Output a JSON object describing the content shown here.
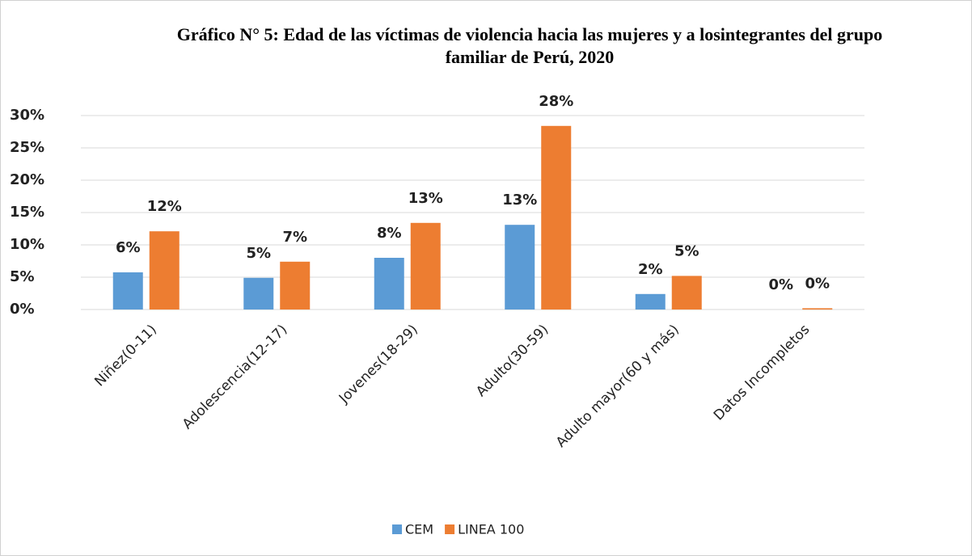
{
  "chart_data": {
    "type": "bar",
    "title": [
      "Gráfico N° 5: Edad de las víctimas de violencia hacia las mujeres y a losintegrantes del grupo",
      "familiar de Perú, 2020"
    ],
    "categories": [
      "Niñez(0-11)",
      "Adolescencia(12-17)",
      "Jovenes(18-29)",
      "Adulto(30-59)",
      "Adulto mayor(60 y más)",
      "Datos Incompletos"
    ],
    "series": [
      {
        "name": "CEM",
        "color": "#5b9bd5",
        "values": [
          5.75,
          4.9,
          8.0,
          13.1,
          2.4,
          0.0
        ],
        "value_labels": [
          "6%",
          "5%",
          "8%",
          "13%",
          "2%",
          "0%"
        ]
      },
      {
        "name": "LINEA 100",
        "color": "#ed7d31",
        "values": [
          12.1,
          7.4,
          13.4,
          28.4,
          5.2,
          0.2
        ],
        "value_labels": [
          "12%",
          "7%",
          "13%",
          "28%",
          "5%",
          "0%"
        ]
      }
    ],
    "ylim": [
      0,
      30
    ],
    "yticks": [
      {
        "value": 0,
        "label": "0%"
      },
      {
        "value": 5,
        "label": "5%"
      },
      {
        "value": 10,
        "label": "10%"
      },
      {
        "value": 15,
        "label": "15%"
      },
      {
        "value": 20,
        "label": "20%"
      },
      {
        "value": 25,
        "label": "25%"
      },
      {
        "value": 30,
        "label": "30%"
      }
    ],
    "grid": true,
    "legend": "bottom"
  }
}
